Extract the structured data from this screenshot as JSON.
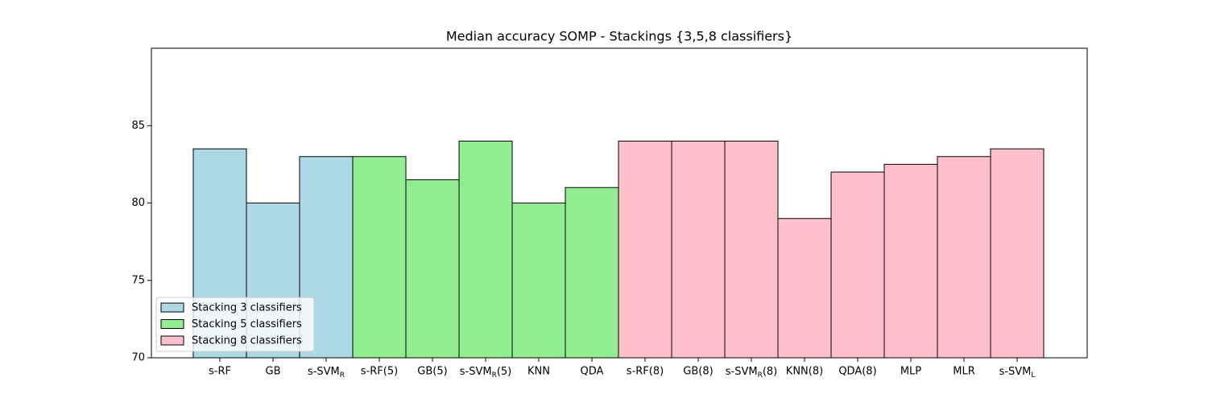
{
  "chart_data": {
    "type": "bar",
    "title": "Median accuracy SOMP - Stackings {3,5,8 classifiers}",
    "categories": [
      "s-RF",
      "GB",
      "s-SVMR",
      "s-RF(5)",
      "GB(5)",
      "s-SVMR(5)",
      "KNN",
      "QDA",
      "s-RF(8)",
      "GB(8)",
      "s-SVMR(8)",
      "KNN(8)",
      "QDA(8)",
      "MLP",
      "MLR",
      "s-SVML"
    ],
    "series": [
      {
        "name": "Stacking 3 classifiers",
        "color": "#add8e6",
        "values": [
          83.5,
          80,
          83,
          null,
          null,
          null,
          null,
          null,
          null,
          null,
          null,
          null,
          null,
          null,
          null,
          null
        ]
      },
      {
        "name": "Stacking 5 classifiers",
        "color": "#90ee90",
        "values": [
          null,
          null,
          null,
          83,
          81.5,
          84,
          80,
          81,
          null,
          null,
          null,
          null,
          null,
          null,
          null,
          null
        ]
      },
      {
        "name": "Stacking 8 classifiers",
        "color": "#ffc0cb",
        "values": [
          null,
          null,
          null,
          null,
          null,
          null,
          null,
          null,
          84,
          84,
          84,
          79,
          82,
          82.5,
          83,
          83.5
        ]
      }
    ],
    "ylim": [
      70,
      90
    ],
    "yticks": [
      70,
      75,
      80,
      85
    ],
    "grid": false,
    "legend": "lower left"
  }
}
